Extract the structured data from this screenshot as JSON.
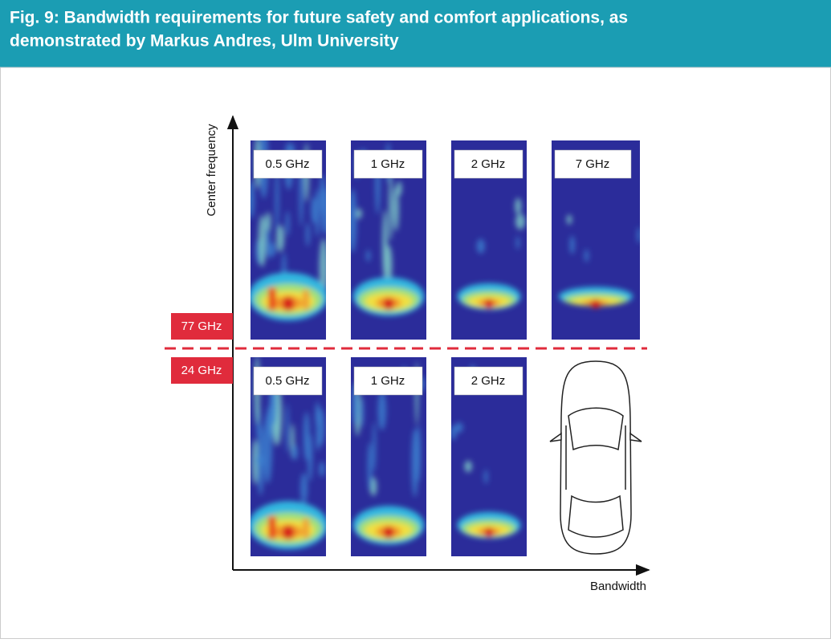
{
  "header": {
    "title_lines": [
      "Fig. 9: Bandwidth requirements for future safety and comfort applications, as",
      "demonstrated by Markus Andres, Ulm University"
    ]
  },
  "axes": {
    "y_label": "Center frequency",
    "x_label": "Bandwidth"
  },
  "bands": [
    {
      "label": "77 GHz",
      "panels": [
        "0.5 GHz",
        "1 GHz",
        "2 GHz",
        "7 GHz"
      ]
    },
    {
      "label": "24 GHz",
      "panels": [
        "0.5 GHz",
        "1 GHz",
        "2 GHz"
      ]
    }
  ]
}
